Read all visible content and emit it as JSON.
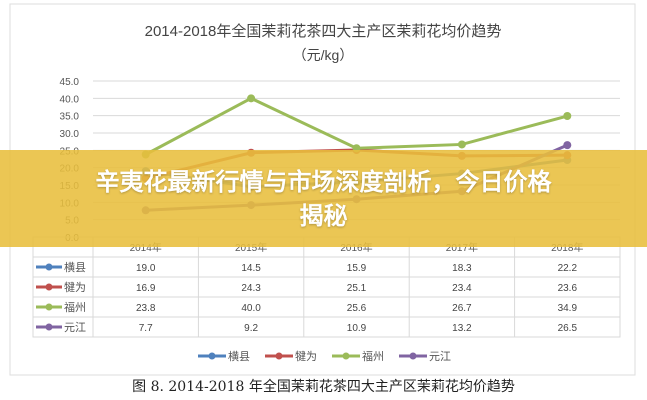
{
  "banner": {
    "title": "辛夷花最新行情与市场深度剖析，今日价格揭秘"
  },
  "caption": "图 8. 2014-2018 年全国茉莉花茶四大主产区茉莉花均价趋势",
  "chart_data": {
    "type": "line",
    "title": "2014-2018年全国茉莉花茶四大主产区茉莉花均价趋势",
    "subtitle": "（元/kg）",
    "categories": [
      "2014年",
      "2015年",
      "2016年",
      "2017年",
      "2018年"
    ],
    "ylim": [
      0,
      45
    ],
    "yticks": [
      "0.0",
      "5.0",
      "10.0",
      "15.0",
      "20.0",
      "25.0",
      "30.0",
      "35.0",
      "40.0",
      "45.0"
    ],
    "grid": true,
    "legend_placement": "bottom",
    "data_table": true,
    "series": [
      {
        "name": "横县",
        "color": "#4f81bd",
        "values": [
          19.0,
          14.5,
          15.9,
          18.3,
          22.2
        ]
      },
      {
        "name": "犍为",
        "color": "#c0504d",
        "values": [
          16.9,
          24.3,
          25.1,
          23.4,
          23.6
        ]
      },
      {
        "name": "福州",
        "color": "#9bbb59",
        "values": [
          23.8,
          40.0,
          25.6,
          26.7,
          34.9
        ]
      },
      {
        "name": "元江",
        "color": "#8064a2",
        "values": [
          7.7,
          9.2,
          10.9,
          13.2,
          26.5
        ]
      }
    ]
  }
}
